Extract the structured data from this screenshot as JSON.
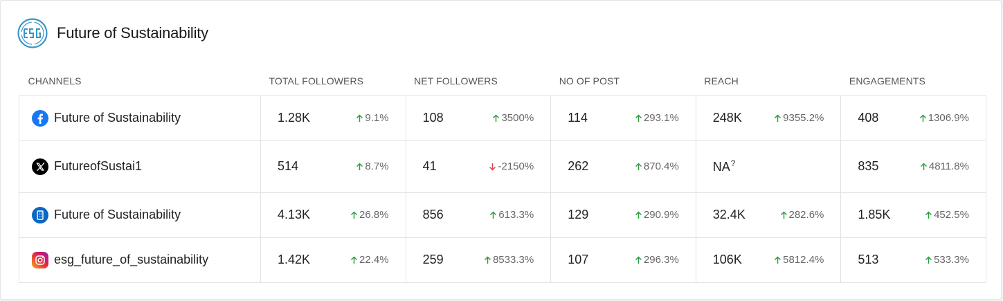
{
  "header": {
    "title": "Future of Sustainability",
    "logo_icon": "esg-logo-icon"
  },
  "colors": {
    "up": "#2e9e3f",
    "down": "#e0444a",
    "logo": "#3a95c8",
    "facebook": "#1877f2",
    "x": "#000000",
    "linkedin": "#0a66c2"
  },
  "columns": [
    "CHANNELS",
    "TOTAL FOLLOWERS",
    "NET FOLLOWERS",
    "NO OF POST",
    "REACH",
    "ENGAGEMENTS"
  ],
  "rows": [
    {
      "channel": {
        "name": "Future of Sustainability",
        "icon": "facebook-icon"
      },
      "metrics": [
        {
          "value": "1.28K",
          "change": "9.1%",
          "direction": "up"
        },
        {
          "value": "108",
          "change": "3500%",
          "direction": "up"
        },
        {
          "value": "114",
          "change": "293.1%",
          "direction": "up"
        },
        {
          "value": "248K",
          "change": "9355.2%",
          "direction": "up"
        },
        {
          "value": "408",
          "change": "1306.9%",
          "direction": "up"
        }
      ]
    },
    {
      "channel": {
        "name": "FutureofSustai1",
        "icon": "x-icon"
      },
      "metrics": [
        {
          "value": "514",
          "change": "8.7%",
          "direction": "up"
        },
        {
          "value": "41",
          "change": "-2150%",
          "direction": "down"
        },
        {
          "value": "262",
          "change": "870.4%",
          "direction": "up"
        },
        {
          "value": "NA",
          "note": "?",
          "change": "",
          "direction": "none"
        },
        {
          "value": "835",
          "change": "4811.8%",
          "direction": "up"
        }
      ]
    },
    {
      "channel": {
        "name": "Future of Sustainability",
        "icon": "linkedin-page-icon"
      },
      "metrics": [
        {
          "value": "4.13K",
          "change": "26.8%",
          "direction": "up"
        },
        {
          "value": "856",
          "change": "613.3%",
          "direction": "up"
        },
        {
          "value": "129",
          "change": "290.9%",
          "direction": "up"
        },
        {
          "value": "32.4K",
          "change": "282.6%",
          "direction": "up"
        },
        {
          "value": "1.85K",
          "change": "452.5%",
          "direction": "up"
        }
      ]
    },
    {
      "channel": {
        "name": "esg_future_of_sustainability",
        "icon": "instagram-icon"
      },
      "metrics": [
        {
          "value": "1.42K",
          "change": "22.4%",
          "direction": "up"
        },
        {
          "value": "259",
          "change": "8533.3%",
          "direction": "up"
        },
        {
          "value": "107",
          "change": "296.3%",
          "direction": "up"
        },
        {
          "value": "106K",
          "change": "5812.4%",
          "direction": "up"
        },
        {
          "value": "513",
          "change": "533.3%",
          "direction": "up"
        }
      ]
    }
  ]
}
